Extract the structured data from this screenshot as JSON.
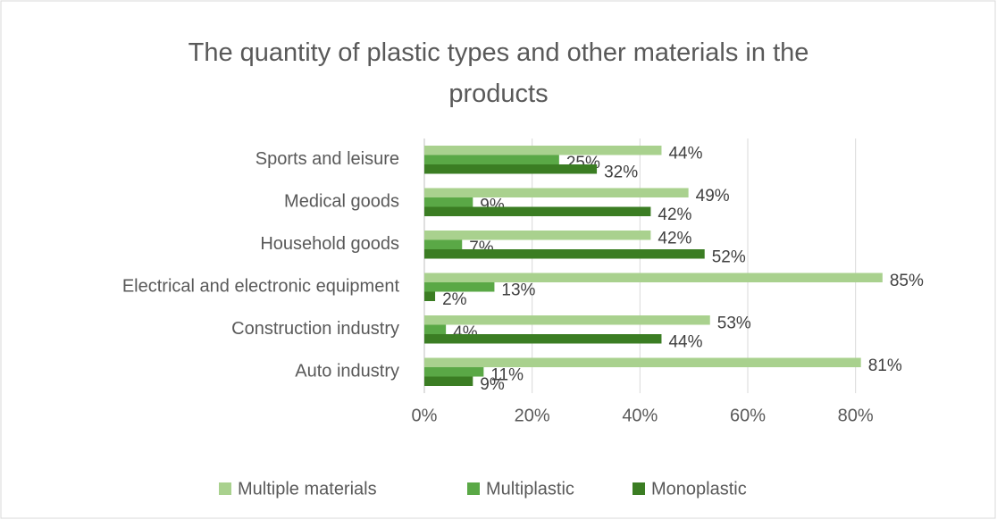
{
  "chart_data": {
    "type": "bar",
    "orientation": "horizontal",
    "title": "The quantity of plastic types and other materials in the products",
    "categories": [
      "Auto industry",
      "Construction industry",
      "Electrical and electronic equipment",
      "Household goods",
      "Medical goods",
      "Sports and leisure"
    ],
    "series": [
      {
        "name": "Multiple materials",
        "color": "#a9d18e",
        "values": [
          81,
          53,
          85,
          42,
          49,
          44
        ],
        "value_labels": [
          "81%",
          "53%",
          "85%",
          "42%",
          "49%",
          "44%"
        ]
      },
      {
        "name": "Multiplastic",
        "color": "#5aa846",
        "values": [
          11,
          4,
          13,
          7,
          9,
          25
        ],
        "value_labels": [
          "11%",
          "4%",
          "13%",
          "7%",
          "9%",
          "25%"
        ]
      },
      {
        "name": "Monoplastic",
        "color": "#3b7d23",
        "values": [
          9,
          44,
          2,
          52,
          42,
          32
        ],
        "value_labels": [
          "9%",
          "44%",
          "2%",
          "52%",
          "42%",
          "32%"
        ]
      }
    ],
    "xlim": [
      0,
      90
    ],
    "xticks": [
      {
        "value": 0,
        "label": "0%"
      },
      {
        "value": 20,
        "label": "20%"
      },
      {
        "value": 40,
        "label": "40%"
      },
      {
        "value": 60,
        "label": "60%"
      },
      {
        "value": 80,
        "label": "80%"
      }
    ],
    "grid": true,
    "legend": "bottom"
  }
}
